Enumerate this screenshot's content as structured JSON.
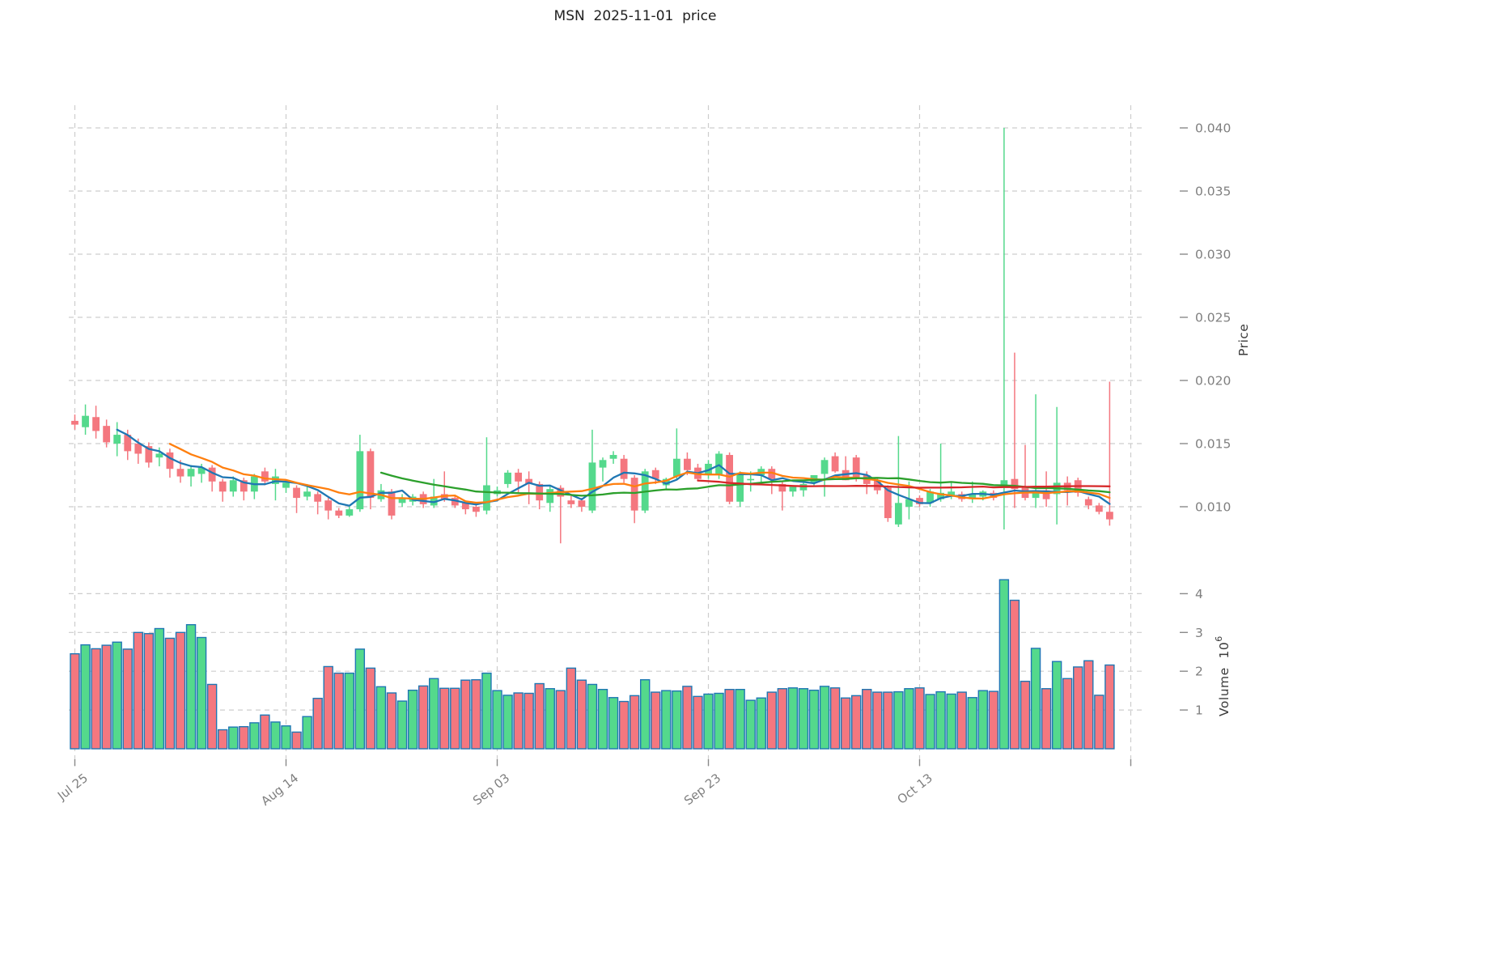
{
  "title": "MSN  2025-11-01  price",
  "price_axis": {
    "label": "Price",
    "ticks": [
      0.04,
      0.035,
      0.03,
      0.025,
      0.02,
      0.015,
      0.01
    ]
  },
  "volume_axis": {
    "label": "Volume",
    "unit": "10",
    "exp": "6",
    "ticks": [
      4,
      3,
      2,
      1
    ]
  },
  "x_axis": {
    "ticks": [
      {
        "label": "Jul 25",
        "day": 0
      },
      {
        "label": "Aug 14",
        "day": 20
      },
      {
        "label": "Sep 03",
        "day": 40
      },
      {
        "label": "Sep 23",
        "day": 60
      },
      {
        "label": "Oct 13",
        "day": 80
      },
      {
        "label": "",
        "day": 100
      }
    ]
  },
  "colors": {
    "up": "#54d98c",
    "down": "#f4777f",
    "volume_border": "#1f77b4",
    "grid": "#cdcdcd",
    "tick_text": "#7f7f7f",
    "tick_mark": "#8a8a8a",
    "ma5": "#1f77b4",
    "ma10": "#ff7f0e",
    "ma30": "#2ca02c",
    "ma60": "#d62728"
  },
  "chart_data": {
    "type": "candlestick+volume",
    "title": "MSN  2025-11-01  price",
    "symbol": "MSN",
    "start_date": "2025-07-25",
    "end_date": "2025-10-31",
    "frequency": "daily",
    "price_ylim": [
      0.005,
      0.042
    ],
    "volume_ylim": [
      0,
      4.6
    ],
    "volume_scale": 1000000,
    "legend_position": "none",
    "grid": "dashed",
    "moving_averages": [
      {
        "window": 5,
        "color": "#1f77b4"
      },
      {
        "window": 10,
        "color": "#ff7f0e"
      },
      {
        "window": 30,
        "color": "#2ca02c"
      },
      {
        "window": 60,
        "color": "#d62728"
      }
    ],
    "ohlcv_columns": [
      "open",
      "high",
      "low",
      "close",
      "volume_millions"
    ],
    "ohlcv": [
      [
        0.0168,
        0.0173,
        0.0161,
        0.0165,
        2.45
      ],
      [
        0.0163,
        0.0181,
        0.0157,
        0.0172,
        2.68
      ],
      [
        0.0171,
        0.018,
        0.0154,
        0.016,
        2.58
      ],
      [
        0.0164,
        0.0169,
        0.0147,
        0.0151,
        2.67
      ],
      [
        0.015,
        0.0167,
        0.014,
        0.0157,
        2.75
      ],
      [
        0.0157,
        0.0161,
        0.0137,
        0.0144,
        2.57
      ],
      [
        0.015,
        0.0154,
        0.0134,
        0.0142,
        3.0
      ],
      [
        0.0148,
        0.0151,
        0.0131,
        0.0135,
        2.97
      ],
      [
        0.0139,
        0.0147,
        0.0132,
        0.0142,
        3.1
      ],
      [
        0.0143,
        0.0146,
        0.0123,
        0.013,
        2.85
      ],
      [
        0.013,
        0.0137,
        0.0119,
        0.0124,
        3.0
      ],
      [
        0.0124,
        0.0133,
        0.0116,
        0.013,
        3.2
      ],
      [
        0.0126,
        0.0134,
        0.0119,
        0.0131,
        2.87
      ],
      [
        0.0131,
        0.0133,
        0.0112,
        0.012,
        1.66
      ],
      [
        0.012,
        0.0122,
        0.0104,
        0.0112,
        0.49
      ],
      [
        0.0112,
        0.0124,
        0.0108,
        0.0121,
        0.56
      ],
      [
        0.0121,
        0.0123,
        0.0105,
        0.0112,
        0.57
      ],
      [
        0.0112,
        0.0126,
        0.0106,
        0.0124,
        0.67
      ],
      [
        0.0128,
        0.0131,
        0.0117,
        0.012,
        0.87
      ],
      [
        0.0118,
        0.013,
        0.0105,
        0.0124,
        0.69
      ],
      [
        0.0115,
        0.0121,
        0.0111,
        0.0119,
        0.59
      ],
      [
        0.0115,
        0.0117,
        0.0095,
        0.0107,
        0.43
      ],
      [
        0.0108,
        0.0118,
        0.0105,
        0.0112,
        0.83
      ],
      [
        0.011,
        0.0112,
        0.0094,
        0.0104,
        1.3
      ],
      [
        0.0105,
        0.0107,
        0.009,
        0.0097,
        2.12
      ],
      [
        0.0097,
        0.0099,
        0.0091,
        0.0093,
        1.95
      ],
      [
        0.0093,
        0.01,
        0.0092,
        0.0098,
        1.95
      ],
      [
        0.0098,
        0.0157,
        0.0096,
        0.0144,
        2.57
      ],
      [
        0.0144,
        0.0146,
        0.0098,
        0.0107,
        2.08
      ],
      [
        0.0106,
        0.0118,
        0.0104,
        0.0113,
        1.6
      ],
      [
        0.0112,
        0.0114,
        0.009,
        0.0093,
        1.44
      ],
      [
        0.0103,
        0.011,
        0.01,
        0.0107,
        1.23
      ],
      [
        0.0104,
        0.011,
        0.0101,
        0.0108,
        1.51
      ],
      [
        0.011,
        0.0112,
        0.0099,
        0.0102,
        1.62
      ],
      [
        0.0101,
        0.0122,
        0.0099,
        0.0108,
        1.81
      ],
      [
        0.011,
        0.0128,
        0.0104,
        0.0106,
        1.56
      ],
      [
        0.0107,
        0.0109,
        0.0099,
        0.0101,
        1.56
      ],
      [
        0.0103,
        0.0105,
        0.0094,
        0.0098,
        1.77
      ],
      [
        0.01,
        0.0102,
        0.0092,
        0.0096,
        1.78
      ],
      [
        0.0097,
        0.0155,
        0.0094,
        0.0117,
        1.95
      ],
      [
        0.011,
        0.0116,
        0.0108,
        0.0113,
        1.5
      ],
      [
        0.0118,
        0.0129,
        0.0115,
        0.0127,
        1.38
      ],
      [
        0.0127,
        0.013,
        0.011,
        0.012,
        1.44
      ],
      [
        0.0122,
        0.0128,
        0.0102,
        0.0118,
        1.43
      ],
      [
        0.0118,
        0.012,
        0.0098,
        0.0105,
        1.68
      ],
      [
        0.0103,
        0.0117,
        0.0096,
        0.0114,
        1.55
      ],
      [
        0.0115,
        0.0117,
        0.0071,
        0.0108,
        1.5
      ],
      [
        0.0105,
        0.0109,
        0.0099,
        0.0102,
        2.08
      ],
      [
        0.0105,
        0.0107,
        0.0096,
        0.01,
        1.77
      ],
      [
        0.0097,
        0.0161,
        0.0095,
        0.0135,
        1.66
      ],
      [
        0.0131,
        0.0139,
        0.012,
        0.0137,
        1.53
      ],
      [
        0.0138,
        0.0144,
        0.0134,
        0.0141,
        1.32
      ],
      [
        0.0138,
        0.0141,
        0.0119,
        0.0122,
        1.22
      ],
      [
        0.0123,
        0.0125,
        0.0087,
        0.0097,
        1.37
      ],
      [
        0.0097,
        0.013,
        0.0095,
        0.0128,
        1.78
      ],
      [
        0.0129,
        0.0131,
        0.0118,
        0.0122,
        1.46
      ],
      [
        0.0117,
        0.0123,
        0.0114,
        0.0122,
        1.5
      ],
      [
        0.0124,
        0.0162,
        0.0122,
        0.0138,
        1.49
      ],
      [
        0.0138,
        0.0143,
        0.0125,
        0.0129,
        1.61
      ],
      [
        0.0131,
        0.0134,
        0.012,
        0.0122,
        1.35
      ],
      [
        0.0125,
        0.0137,
        0.0122,
        0.0134,
        1.41
      ],
      [
        0.0125,
        0.0144,
        0.0122,
        0.0142,
        1.43
      ],
      [
        0.0141,
        0.0143,
        0.0102,
        0.0104,
        1.53
      ],
      [
        0.0104,
        0.0128,
        0.01,
        0.0127,
        1.53
      ],
      [
        0.0122,
        0.0128,
        0.0112,
        0.0122,
        1.25
      ],
      [
        0.0125,
        0.0132,
        0.0118,
        0.013,
        1.31
      ],
      [
        0.013,
        0.0132,
        0.011,
        0.0122,
        1.46
      ],
      [
        0.0118,
        0.012,
        0.0097,
        0.0112,
        1.55
      ],
      [
        0.0112,
        0.0116,
        0.0108,
        0.0116,
        1.57
      ],
      [
        0.0113,
        0.012,
        0.0108,
        0.0118,
        1.55
      ],
      [
        0.0119,
        0.0125,
        0.0117,
        0.0125,
        1.51
      ],
      [
        0.0126,
        0.0139,
        0.0108,
        0.0137,
        1.61
      ],
      [
        0.014,
        0.0143,
        0.0127,
        0.0128,
        1.57
      ],
      [
        0.0129,
        0.014,
        0.0121,
        0.0121,
        1.31
      ],
      [
        0.0139,
        0.0141,
        0.012,
        0.0122,
        1.37
      ],
      [
        0.0125,
        0.0128,
        0.011,
        0.0118,
        1.53
      ],
      [
        0.0121,
        0.0123,
        0.011,
        0.0113,
        1.46
      ],
      [
        0.0115,
        0.0117,
        0.0088,
        0.0091,
        1.46
      ],
      [
        0.0086,
        0.0156,
        0.0084,
        0.0103,
        1.47
      ],
      [
        0.01,
        0.012,
        0.009,
        0.0106,
        1.55
      ],
      [
        0.0107,
        0.0109,
        0.01,
        0.0102,
        1.57
      ],
      [
        0.0103,
        0.0114,
        0.01,
        0.0112,
        1.4
      ],
      [
        0.0106,
        0.015,
        0.0104,
        0.0111,
        1.47
      ],
      [
        0.0108,
        0.012,
        0.0106,
        0.0112,
        1.41
      ],
      [
        0.011,
        0.0112,
        0.0104,
        0.0106,
        1.46
      ],
      [
        0.0106,
        0.012,
        0.0103,
        0.011,
        1.32
      ],
      [
        0.0108,
        0.0113,
        0.0105,
        0.0112,
        1.5
      ],
      [
        0.0111,
        0.0113,
        0.0105,
        0.0107,
        1.48
      ],
      [
        0.0115,
        0.04,
        0.0082,
        0.0121,
        4.36
      ],
      [
        0.0122,
        0.0222,
        0.0099,
        0.0114,
        3.83
      ],
      [
        0.0116,
        0.0149,
        0.0105,
        0.0107,
        1.74
      ],
      [
        0.0107,
        0.0189,
        0.0099,
        0.0113,
        2.59
      ],
      [
        0.0113,
        0.0128,
        0.01,
        0.0106,
        1.55
      ],
      [
        0.011,
        0.0179,
        0.0086,
        0.0119,
        2.25
      ],
      [
        0.0119,
        0.0124,
        0.0101,
        0.0113,
        1.81
      ],
      [
        0.0121,
        0.0123,
        0.0108,
        0.0111,
        2.11
      ],
      [
        0.0106,
        0.0108,
        0.0098,
        0.0101,
        2.27
      ],
      [
        0.0101,
        0.0103,
        0.0094,
        0.0096,
        1.38
      ],
      [
        0.0096,
        0.0199,
        0.0085,
        0.009,
        2.16
      ]
    ]
  }
}
